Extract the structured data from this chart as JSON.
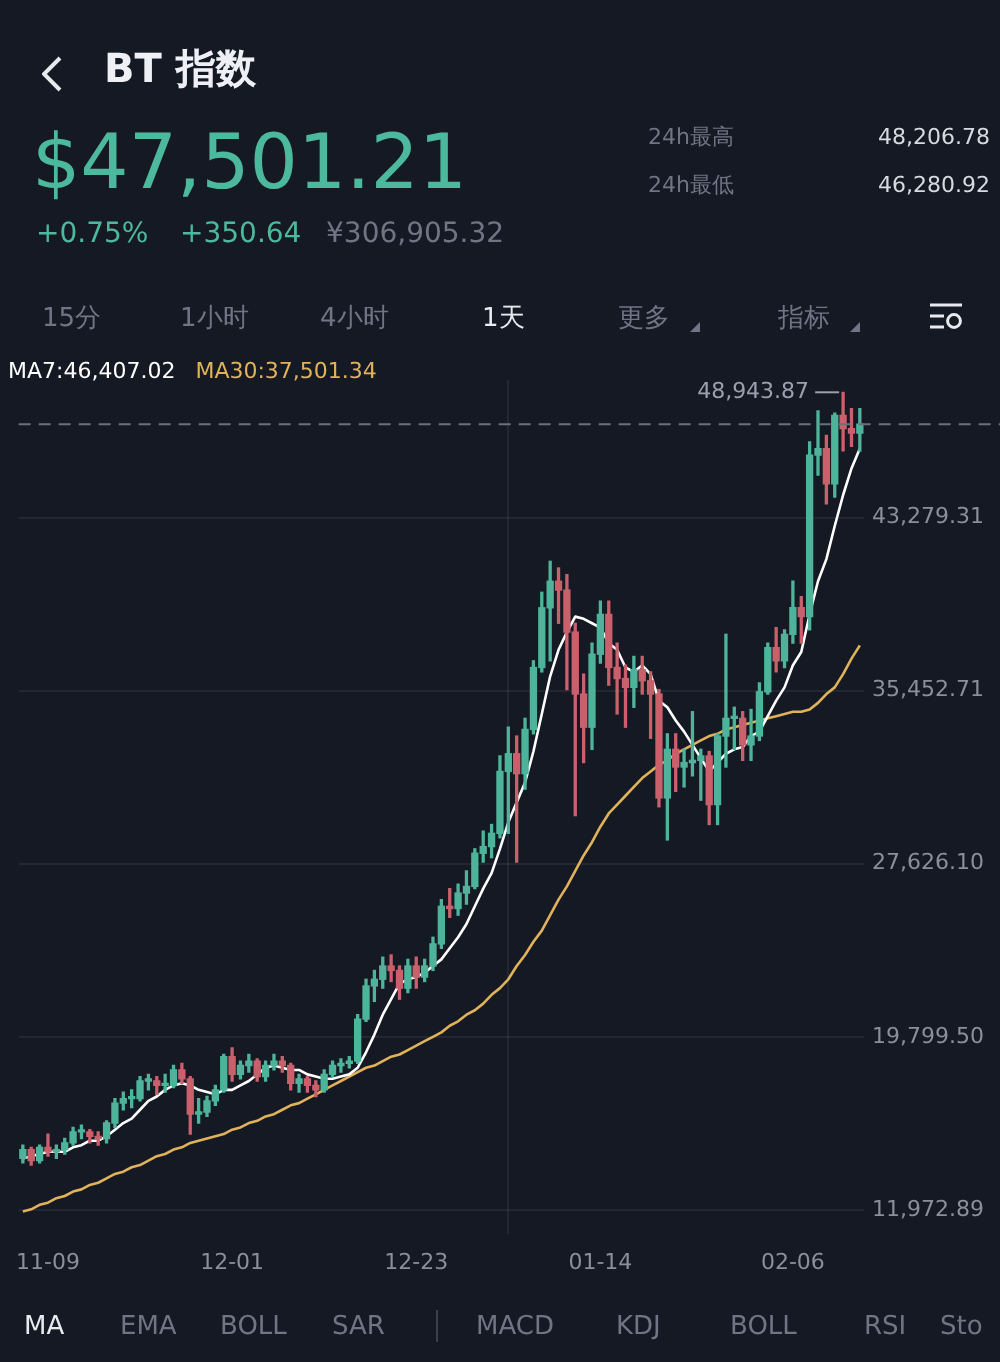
{
  "chart_data": {
    "type": "candlestick",
    "title": "BT 指数",
    "categories": [
      null,
      null,
      null,
      "11-09",
      null,
      null,
      null,
      null,
      null,
      null,
      null,
      null,
      null,
      null,
      null,
      null,
      null,
      null,
      null,
      null,
      null,
      null,
      null,
      null,
      null,
      "12-01",
      null,
      null,
      null,
      null,
      null,
      null,
      null,
      null,
      null,
      null,
      null,
      null,
      null,
      null,
      null,
      null,
      null,
      null,
      null,
      null,
      null,
      "12-23",
      null,
      null,
      null,
      null,
      null,
      null,
      null,
      null,
      null,
      null,
      null,
      null,
      null,
      null,
      null,
      null,
      null,
      null,
      null,
      null,
      null,
      "01-14",
      null,
      null,
      null,
      null,
      null,
      null,
      null,
      null,
      null,
      null,
      null,
      null,
      null,
      null,
      null,
      null,
      null,
      null,
      null,
      null,
      null,
      null,
      "02-06",
      null,
      null,
      null,
      null,
      null,
      null,
      null,
      null
    ],
    "ohlc": [
      [
        14300,
        14900,
        14100,
        14700
      ],
      [
        14700,
        14800,
        14000,
        14200
      ],
      [
        14200,
        14900,
        14100,
        14800
      ],
      [
        14800,
        15400,
        14400,
        14600
      ],
      [
        14600,
        14900,
        14300,
        14700
      ],
      [
        14700,
        15200,
        14500,
        15000
      ],
      [
        15000,
        15700,
        14900,
        15500
      ],
      [
        15500,
        15800,
        15200,
        15500
      ],
      [
        15500,
        15600,
        15000,
        15300
      ],
      [
        15300,
        15500,
        14900,
        15200
      ],
      [
        15200,
        16000,
        15000,
        15900
      ],
      [
        15900,
        17000,
        15700,
        16800
      ],
      [
        16800,
        17300,
        16500,
        17000
      ],
      [
        17000,
        17400,
        16600,
        17000
      ],
      [
        17000,
        18000,
        16900,
        17800
      ],
      [
        17800,
        18100,
        17400,
        17800
      ],
      [
        17800,
        18000,
        17200,
        17600
      ],
      [
        17600,
        18100,
        17300,
        17600
      ],
      [
        17600,
        18500,
        17500,
        18300
      ],
      [
        18300,
        18600,
        17700,
        17900
      ],
      [
        17900,
        18000,
        15400,
        16300
      ],
      [
        16300,
        17000,
        15900,
        16400
      ],
      [
        16400,
        17100,
        16200,
        16900
      ],
      [
        16900,
        17600,
        16700,
        17400
      ],
      [
        17400,
        19000,
        17300,
        18900
      ],
      [
        18900,
        19300,
        17800,
        18100
      ],
      [
        18100,
        18700,
        17900,
        18500
      ],
      [
        18500,
        19000,
        18200,
        18700
      ],
      [
        18700,
        18800,
        17800,
        18000
      ],
      [
        18000,
        18700,
        17800,
        18500
      ],
      [
        18500,
        19000,
        18300,
        18700
      ],
      [
        18700,
        18900,
        18200,
        18500
      ],
      [
        18500,
        18600,
        17400,
        17700
      ],
      [
        17700,
        18100,
        17300,
        17900
      ],
      [
        17900,
        18000,
        17300,
        17600
      ],
      [
        17600,
        17800,
        17100,
        17400
      ],
      [
        17400,
        18300,
        17300,
        18100
      ],
      [
        18100,
        18700,
        18000,
        18500
      ],
      [
        18500,
        18800,
        18200,
        18600
      ],
      [
        18600,
        18900,
        18400,
        18700
      ],
      [
        18700,
        20800,
        18600,
        20600
      ],
      [
        20600,
        22400,
        20500,
        22100
      ],
      [
        22100,
        22800,
        21400,
        22400
      ],
      [
        22400,
        23400,
        22000,
        23000
      ],
      [
        23000,
        23500,
        22300,
        22800
      ],
      [
        22800,
        23000,
        21500,
        22000
      ],
      [
        22000,
        23300,
        21800,
        23000
      ],
      [
        23000,
        23400,
        22000,
        22500
      ],
      [
        22500,
        23300,
        22300,
        23000
      ],
      [
        23000,
        24300,
        22800,
        24000
      ],
      [
        24000,
        26000,
        23800,
        25700
      ],
      [
        25700,
        26500,
        25200,
        25600
      ],
      [
        25600,
        26700,
        25300,
        26300
      ],
      [
        26300,
        27300,
        25800,
        26600
      ],
      [
        26600,
        28300,
        26500,
        28100
      ],
      [
        28100,
        29100,
        27700,
        28400
      ],
      [
        28400,
        29400,
        27900,
        29000
      ],
      [
        29000,
        32500,
        28800,
        31800
      ],
      [
        31800,
        33800,
        29000,
        32600
      ],
      [
        32600,
        33400,
        27700,
        31700
      ],
      [
        31700,
        34200,
        31000,
        33700
      ],
      [
        33700,
        36800,
        33500,
        36500
      ],
      [
        36500,
        39900,
        36300,
        39200
      ],
      [
        39200,
        41300,
        36800,
        40400
      ],
      [
        40400,
        41000,
        38500,
        40000
      ],
      [
        40000,
        40700,
        35500,
        38100
      ],
      [
        38100,
        38500,
        29800,
        35300
      ],
      [
        35300,
        36200,
        32200,
        33800
      ],
      [
        33800,
        37600,
        32800,
        37100
      ],
      [
        37100,
        39500,
        36700,
        38900
      ],
      [
        38900,
        39500,
        35700,
        36500
      ],
      [
        36500,
        37600,
        34400,
        36000
      ],
      [
        36000,
        36600,
        33800,
        35600
      ],
      [
        35600,
        37000,
        34700,
        36400
      ],
      [
        36400,
        37000,
        35300,
        35900
      ],
      [
        35900,
        36300,
        33300,
        35300
      ],
      [
        35300,
        35500,
        30200,
        30600
      ],
      [
        30600,
        33500,
        28700,
        32800
      ],
      [
        32800,
        33500,
        30900,
        32000
      ],
      [
        32000,
        32800,
        31100,
        32200
      ],
      [
        32200,
        34500,
        31600,
        32300
      ],
      [
        32300,
        32800,
        30500,
        32500
      ],
      [
        32500,
        32700,
        29400,
        30300
      ],
      [
        30300,
        33500,
        29400,
        33400
      ],
      [
        33400,
        38000,
        32000,
        34200
      ],
      [
        34200,
        34700,
        32800,
        34200
      ],
      [
        34200,
        34500,
        32300,
        33000
      ],
      [
        33000,
        34600,
        32300,
        33400
      ],
      [
        33400,
        35800,
        33200,
        35400
      ],
      [
        35400,
        37600,
        35300,
        37400
      ],
      [
        37400,
        38300,
        36300,
        36800
      ],
      [
        36800,
        38200,
        36500,
        38000
      ],
      [
        38000,
        40400,
        37600,
        39200
      ],
      [
        39200,
        39700,
        37600,
        38800
      ],
      [
        38800,
        46700,
        38200,
        46100
      ],
      [
        46100,
        48100,
        45200,
        46400
      ],
      [
        46400,
        47000,
        43900,
        44800
      ],
      [
        44800,
        48000,
        44200,
        47900
      ],
      [
        47900,
        48943.87,
        46300,
        47300
      ],
      [
        47300,
        48200,
        46500,
        47100
      ],
      [
        47100,
        48200,
        46280.92,
        47501.21
      ]
    ],
    "colors": [
      "#4db49b",
      "#c9606b",
      "#4db49b",
      "#c9606b",
      "#4db49b",
      "#4db49b",
      "#4db49b",
      "#4db49b",
      "#c9606b",
      "#c9606b",
      "#4db49b",
      "#4db49b",
      "#4db49b",
      "#4db49b",
      "#4db49b",
      "#4db49b",
      "#c9606b",
      "#4db49b",
      "#4db49b",
      "#c9606b",
      "#c9606b",
      "#4db49b",
      "#4db49b",
      "#4db49b",
      "#4db49b",
      "#c9606b",
      "#4db49b",
      "#4db49b",
      "#c9606b",
      "#4db49b",
      "#4db49b",
      "#c9606b",
      "#c9606b",
      "#4db49b",
      "#c9606b",
      "#c9606b",
      "#4db49b",
      "#4db49b",
      "#4db49b",
      "#4db49b",
      "#4db49b",
      "#4db49b",
      "#4db49b",
      "#4db49b",
      "#c9606b",
      "#c9606b",
      "#4db49b",
      "#c9606b",
      "#4db49b",
      "#4db49b",
      "#4db49b",
      "#c9606b",
      "#4db49b",
      "#4db49b",
      "#4db49b",
      "#4db49b",
      "#4db49b",
      "#4db49b",
      "#4db49b",
      "#c9606b",
      "#4db49b",
      "#4db49b",
      "#4db49b",
      "#4db49b",
      "#c9606b",
      "#c9606b",
      "#c9606b",
      "#c9606b",
      "#4db49b",
      "#4db49b",
      "#c9606b",
      "#c9606b",
      "#c9606b",
      "#4db49b",
      "#c9606b",
      "#c9606b",
      "#c9606b",
      "#4db49b",
      "#c9606b",
      "#4db49b",
      "#4db49b",
      "#4db49b",
      "#c9606b",
      "#4db49b",
      "#4db49b",
      "#4db49b",
      "#c9606b",
      "#4db49b",
      "#4db49b",
      "#4db49b",
      "#c9606b",
      "#4db49b",
      "#4db49b",
      "#c9606b",
      "#4db49b",
      "#4db49b",
      "#c9606b",
      "#4db49b",
      "#c9606b",
      "#c9606b",
      "#4db49b"
    ],
    "series": [
      {
        "name": "MA7:46,407.02",
        "type": "line",
        "color": "#ffffff",
        "values": [
          14300,
          14400,
          14500,
          14600,
          14600,
          14600,
          14800,
          14900,
          15100,
          15100,
          15300,
          15600,
          15900,
          16100,
          16500,
          16900,
          17100,
          17400,
          17600,
          17700,
          17600,
          17400,
          17300,
          17200,
          17400,
          17400,
          17600,
          17800,
          18100,
          18400,
          18500,
          18400,
          18300,
          18300,
          18100,
          18000,
          17900,
          17900,
          18000,
          18100,
          18400,
          19100,
          19900,
          20800,
          21500,
          22200,
          22400,
          22500,
          22700,
          23000,
          23300,
          23800,
          24300,
          24900,
          25700,
          26500,
          27200,
          28300,
          29500,
          30400,
          31300,
          32700,
          34400,
          36100,
          37300,
          38100,
          38800,
          38700,
          38500,
          38300,
          37600,
          37300,
          36500,
          36300,
          36600,
          36200,
          35000,
          34700,
          34100,
          33600,
          33000,
          32400,
          31800,
          32200,
          32600,
          32800,
          32900,
          33400,
          33600,
          34300,
          35000,
          35600,
          36600,
          37200,
          38900,
          40400,
          41400,
          42900,
          44300,
          45500,
          46400
        ]
      },
      {
        "name": "MA30:37,501.34",
        "type": "line",
        "color": "#e0b25a",
        "values": [
          11900,
          12000,
          12200,
          12300,
          12500,
          12600,
          12800,
          12900,
          13100,
          13200,
          13400,
          13600,
          13700,
          13900,
          14000,
          14200,
          14400,
          14500,
          14700,
          14800,
          15000,
          15100,
          15200,
          15300,
          15400,
          15600,
          15700,
          15900,
          16000,
          16200,
          16300,
          16500,
          16700,
          16800,
          17000,
          17200,
          17400,
          17600,
          17800,
          18000,
          18200,
          18400,
          18500,
          18700,
          18900,
          19000,
          19200,
          19400,
          19600,
          19800,
          20000,
          20300,
          20500,
          20800,
          21000,
          21300,
          21700,
          22000,
          22400,
          23000,
          23500,
          24100,
          24600,
          25300,
          26000,
          26600,
          27300,
          28000,
          28600,
          29300,
          29900,
          30300,
          30700,
          31100,
          31500,
          31800,
          32100,
          32300,
          32600,
          32800,
          33000,
          33200,
          33400,
          33500,
          33700,
          33800,
          33900,
          34000,
          34100,
          34200,
          34300,
          34400,
          34500,
          34500,
          34600,
          34900,
          35300,
          35600,
          36200,
          36900,
          37500
        ]
      }
    ],
    "ylim": [
      10900,
      49500
    ],
    "yticks": [
      {
        "value": 11972.89,
        "label": "11,972.89"
      },
      {
        "value": 19799.5,
        "label": "19,799.50"
      },
      {
        "value": 27626.1,
        "label": "27,626.10"
      },
      {
        "value": 35452.71,
        "label": "35,452.71"
      },
      {
        "value": 43279.31,
        "label": "43,279.31"
      }
    ],
    "grid": true,
    "marker": "none",
    "ref_lines": [
      {
        "axis": "y",
        "value": 47501.21,
        "line_style": "dashed"
      }
    ],
    "annotations": [
      "$47,501.21",
      "+0.75%",
      "+350.64",
      "¥306,905.32",
      "24h最高",
      "48,206.78",
      "24h最低",
      "46,280.92",
      "15分",
      "1小时",
      "4小时",
      "1天",
      "更多",
      "指标",
      "MA",
      "EMA",
      "BOLL",
      "SAR",
      "MACD",
      "KDJ",
      "BOLL",
      "RSI",
      "Sto",
      "48,943.87"
    ]
  }
}
